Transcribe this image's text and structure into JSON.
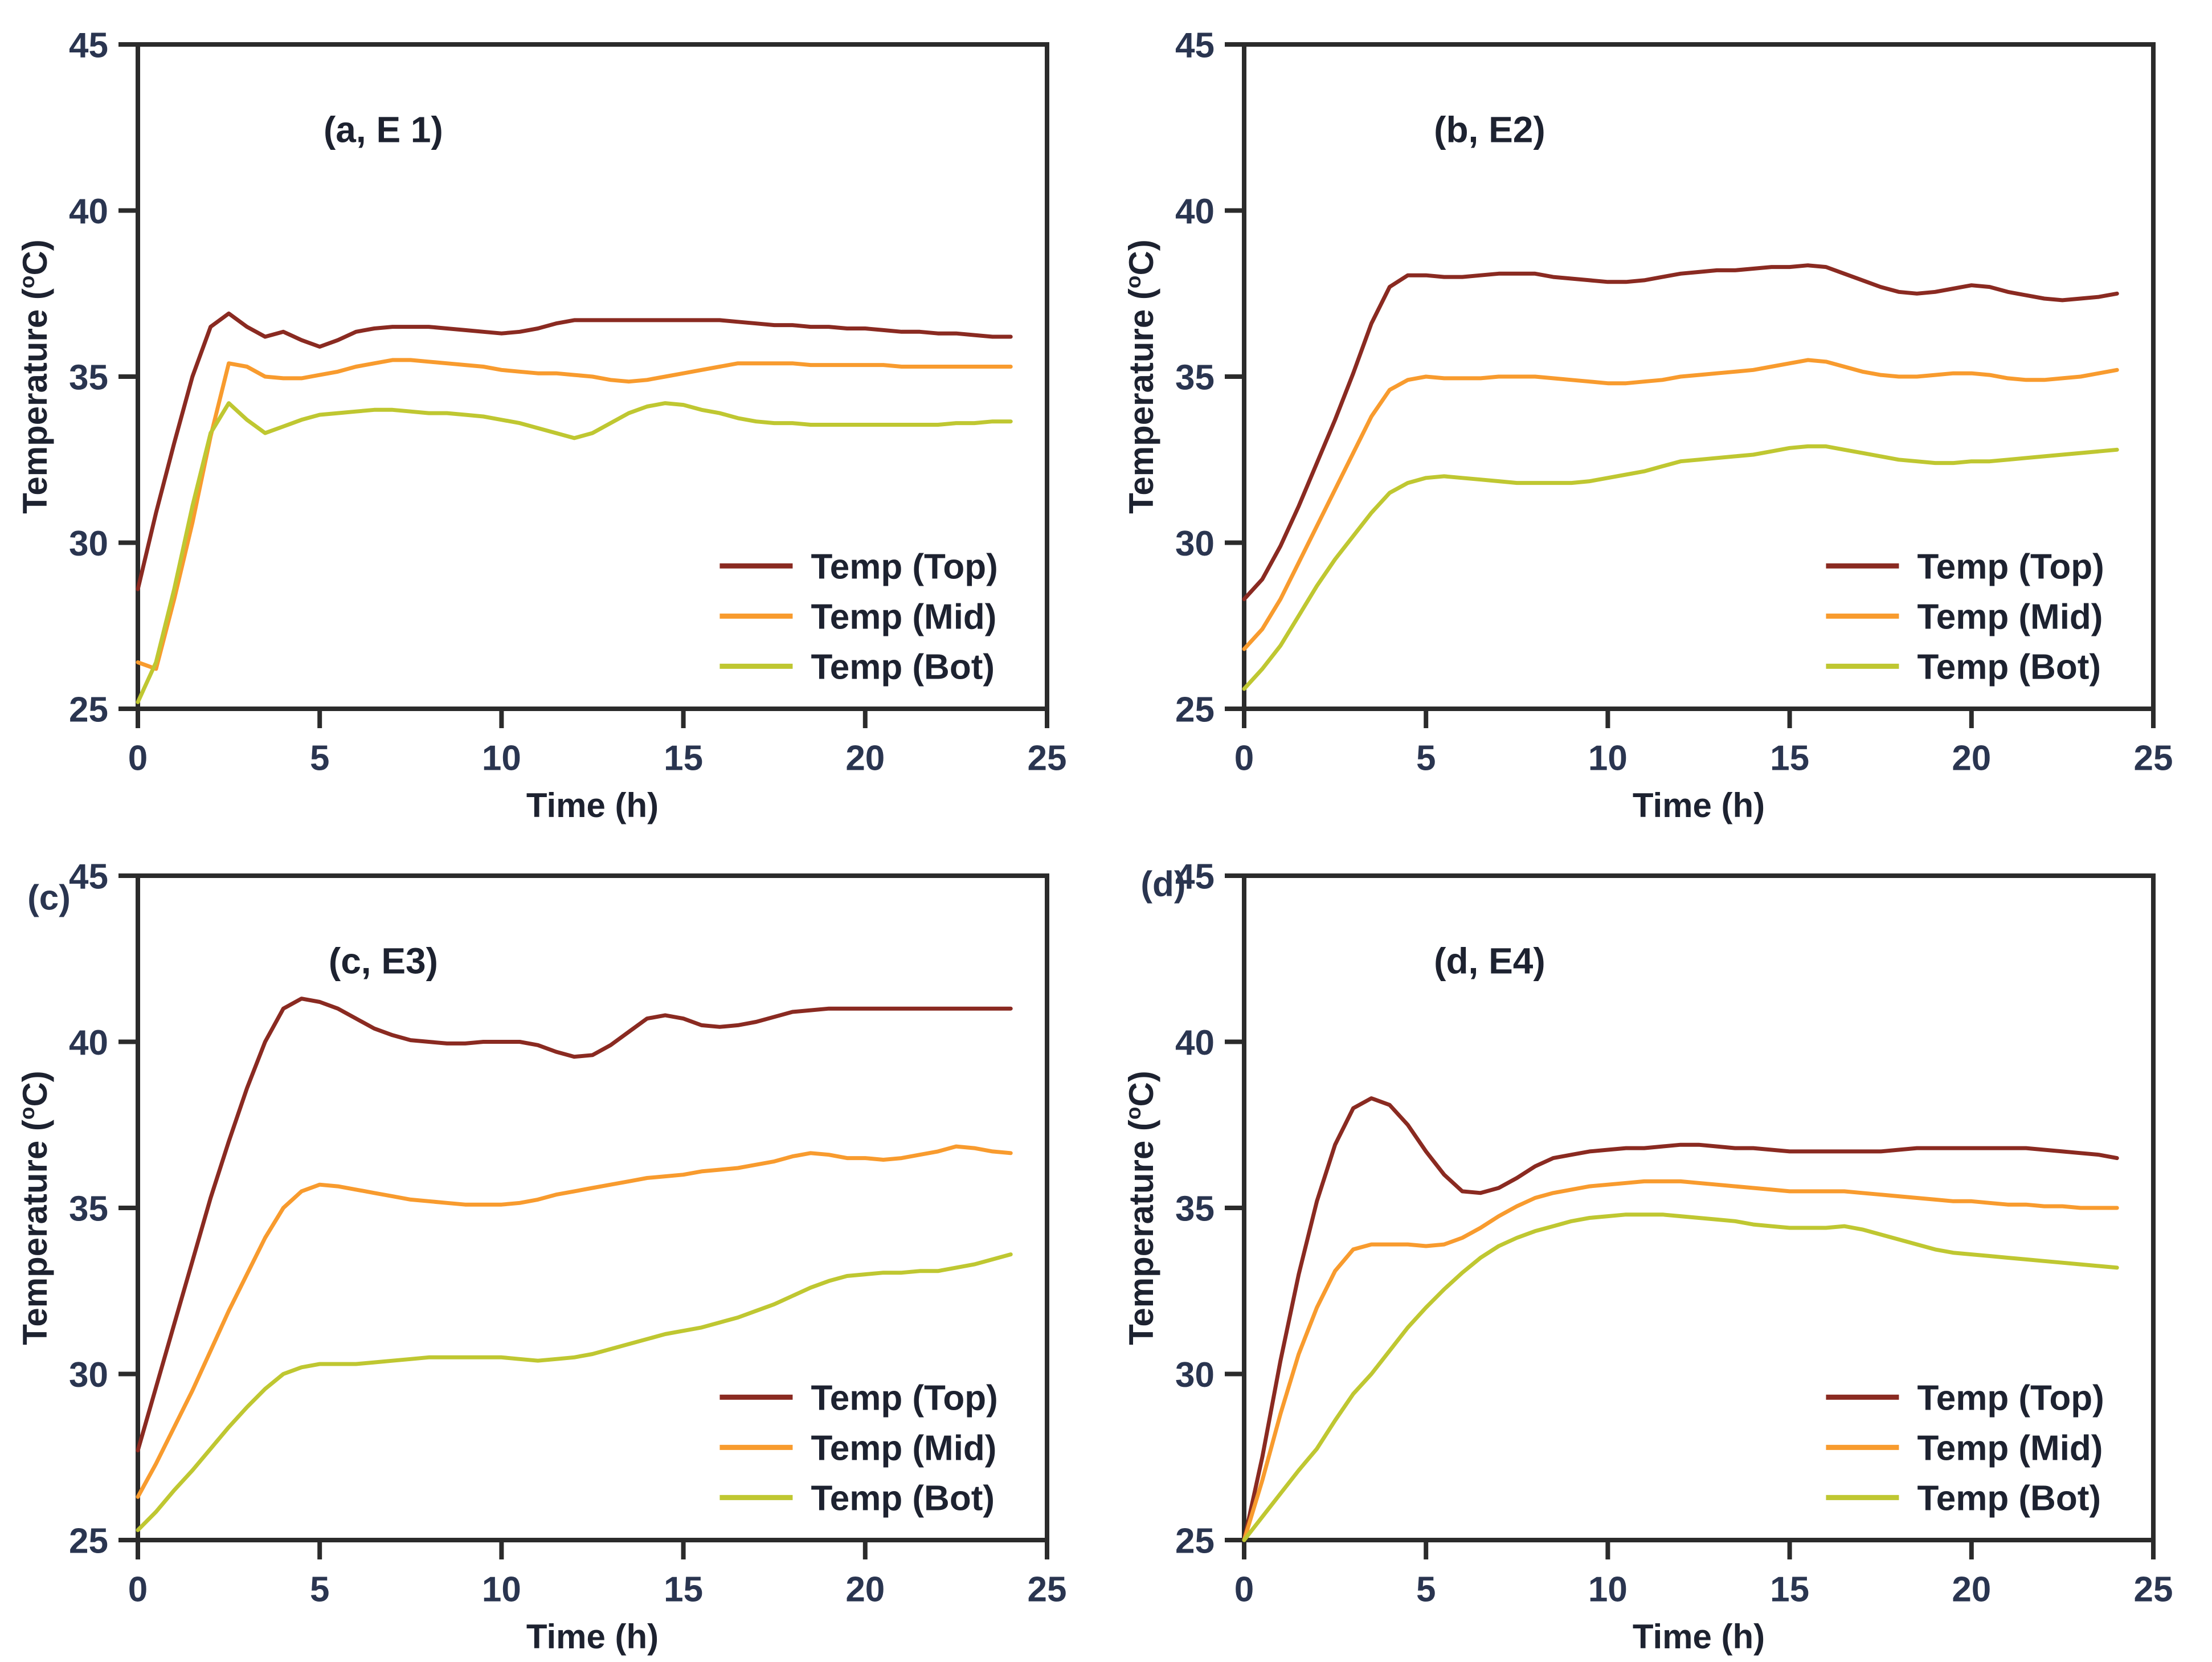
{
  "page": {
    "background": "#ffffff"
  },
  "colors": {
    "axis": "#2b2b2b",
    "tick_text": "#2a3550",
    "label_text": "#1d2230",
    "series_top": "#8a2a21",
    "series_mid": "#f89b2e",
    "series_bot": "#bfc731"
  },
  "legend": {
    "labels": [
      "Temp (Top)",
      "Temp (Mid)",
      "Temp (Bot)"
    ]
  },
  "chart_data": [
    {
      "id": "a",
      "type": "line",
      "title": "(a, E 1)",
      "corner_label": "",
      "xlabel": "Time (h)",
      "ylabel": {
        "pre": "Temperature (",
        "sup": "o",
        "post": "C)"
      },
      "xlim": [
        0,
        25
      ],
      "ylim": [
        25,
        45
      ],
      "xticks": [
        0,
        5,
        10,
        15,
        20,
        25
      ],
      "yticks": [
        25,
        30,
        35,
        40,
        45
      ],
      "grid": false,
      "legend_position": "inside-bottom-right",
      "x": [
        0,
        0.5,
        1,
        1.5,
        2,
        2.5,
        3,
        3.5,
        4,
        4.5,
        5,
        5.5,
        6,
        6.5,
        7,
        7.5,
        8,
        8.5,
        9,
        9.5,
        10,
        10.5,
        11,
        11.5,
        12,
        12.5,
        13,
        13.5,
        14,
        14.5,
        15,
        15.5,
        16,
        16.5,
        17,
        17.5,
        18,
        18.5,
        19,
        19.5,
        20,
        20.5,
        21,
        21.5,
        22,
        22.5,
        23,
        23.5,
        24
      ],
      "series": [
        {
          "name": "Temp (Top)",
          "color_key": "series_top",
          "y": [
            28.6,
            30.9,
            33.0,
            35.0,
            36.5,
            36.9,
            36.5,
            36.2,
            36.35,
            36.1,
            35.9,
            36.1,
            36.35,
            36.45,
            36.5,
            36.5,
            36.5,
            36.45,
            36.4,
            36.35,
            36.3,
            36.35,
            36.45,
            36.6,
            36.7,
            36.7,
            36.7,
            36.7,
            36.7,
            36.7,
            36.7,
            36.7,
            36.7,
            36.65,
            36.6,
            36.55,
            36.55,
            36.5,
            36.5,
            36.45,
            36.45,
            36.4,
            36.35,
            36.35,
            36.3,
            36.3,
            36.25,
            36.2,
            36.2
          ]
        },
        {
          "name": "Temp (Mid)",
          "color_key": "series_mid",
          "y": [
            26.4,
            26.2,
            28.3,
            30.6,
            33.2,
            35.4,
            35.3,
            35.0,
            34.95,
            34.95,
            35.05,
            35.15,
            35.3,
            35.4,
            35.5,
            35.5,
            35.45,
            35.4,
            35.35,
            35.3,
            35.2,
            35.15,
            35.1,
            35.1,
            35.05,
            35.0,
            34.9,
            34.85,
            34.9,
            35.0,
            35.1,
            35.2,
            35.3,
            35.4,
            35.4,
            35.4,
            35.4,
            35.35,
            35.35,
            35.35,
            35.35,
            35.35,
            35.3,
            35.3,
            35.3,
            35.3,
            35.3,
            35.3,
            35.3
          ]
        },
        {
          "name": "Temp (Bot)",
          "color_key": "series_bot",
          "y": [
            25.2,
            26.4,
            28.6,
            31.1,
            33.3,
            34.2,
            33.7,
            33.3,
            33.5,
            33.7,
            33.85,
            33.9,
            33.95,
            34.0,
            34.0,
            33.95,
            33.9,
            33.9,
            33.85,
            33.8,
            33.7,
            33.6,
            33.45,
            33.3,
            33.15,
            33.3,
            33.6,
            33.9,
            34.1,
            34.2,
            34.15,
            34.0,
            33.9,
            33.75,
            33.65,
            33.6,
            33.6,
            33.55,
            33.55,
            33.55,
            33.55,
            33.55,
            33.55,
            33.55,
            33.55,
            33.6,
            33.6,
            33.65,
            33.65
          ]
        }
      ]
    },
    {
      "id": "b",
      "type": "line",
      "title": "(b, E2)",
      "corner_label": "",
      "xlabel": "Time (h)",
      "ylabel": {
        "pre": "Temperature (",
        "sup": "o",
        "post": "C)"
      },
      "xlim": [
        0,
        25
      ],
      "ylim": [
        25,
        45
      ],
      "xticks": [
        0,
        5,
        10,
        15,
        20,
        25
      ],
      "yticks": [
        25,
        30,
        35,
        40,
        45
      ],
      "grid": false,
      "legend_position": "inside-bottom-right",
      "x": [
        0,
        0.5,
        1,
        1.5,
        2,
        2.5,
        3,
        3.5,
        4,
        4.5,
        5,
        5.5,
        6,
        6.5,
        7,
        7.5,
        8,
        8.5,
        9,
        9.5,
        10,
        10.5,
        11,
        11.5,
        12,
        12.5,
        13,
        13.5,
        14,
        14.5,
        15,
        15.5,
        16,
        16.5,
        17,
        17.5,
        18,
        18.5,
        19,
        19.5,
        20,
        20.5,
        21,
        21.5,
        22,
        22.5,
        23,
        23.5,
        24
      ],
      "series": [
        {
          "name": "Temp (Top)",
          "color_key": "series_top",
          "y": [
            28.3,
            28.9,
            29.9,
            31.1,
            32.4,
            33.7,
            35.1,
            36.6,
            37.7,
            38.05,
            38.05,
            38.0,
            38.0,
            38.05,
            38.1,
            38.1,
            38.1,
            38.0,
            37.95,
            37.9,
            37.85,
            37.85,
            37.9,
            38.0,
            38.1,
            38.15,
            38.2,
            38.2,
            38.25,
            38.3,
            38.3,
            38.35,
            38.3,
            38.1,
            37.9,
            37.7,
            37.55,
            37.5,
            37.55,
            37.65,
            37.75,
            37.7,
            37.55,
            37.45,
            37.35,
            37.3,
            37.35,
            37.4,
            37.5
          ]
        },
        {
          "name": "Temp (Mid)",
          "color_key": "series_mid",
          "y": [
            26.8,
            27.4,
            28.3,
            29.4,
            30.5,
            31.6,
            32.7,
            33.8,
            34.6,
            34.9,
            35.0,
            34.95,
            34.95,
            34.95,
            35.0,
            35.0,
            35.0,
            34.95,
            34.9,
            34.85,
            34.8,
            34.8,
            34.85,
            34.9,
            35.0,
            35.05,
            35.1,
            35.15,
            35.2,
            35.3,
            35.4,
            35.5,
            35.45,
            35.3,
            35.15,
            35.05,
            35.0,
            35.0,
            35.05,
            35.1,
            35.1,
            35.05,
            34.95,
            34.9,
            34.9,
            34.95,
            35.0,
            35.1,
            35.2
          ]
        },
        {
          "name": "Temp (Bot)",
          "color_key": "series_bot",
          "y": [
            25.6,
            26.2,
            26.9,
            27.8,
            28.7,
            29.5,
            30.2,
            30.9,
            31.5,
            31.8,
            31.95,
            32.0,
            31.95,
            31.9,
            31.85,
            31.8,
            31.8,
            31.8,
            31.8,
            31.85,
            31.95,
            32.05,
            32.15,
            32.3,
            32.45,
            32.5,
            32.55,
            32.6,
            32.65,
            32.75,
            32.85,
            32.9,
            32.9,
            32.8,
            32.7,
            32.6,
            32.5,
            32.45,
            32.4,
            32.4,
            32.45,
            32.45,
            32.5,
            32.55,
            32.6,
            32.65,
            32.7,
            32.75,
            32.8
          ]
        }
      ]
    },
    {
      "id": "c",
      "type": "line",
      "title": "(c, E3)",
      "corner_label": "(c)",
      "xlabel": "Time (h)",
      "ylabel": {
        "pre": "Temperature (",
        "sup": "o",
        "post": "C)"
      },
      "xlim": [
        0,
        25
      ],
      "ylim": [
        25,
        45
      ],
      "xticks": [
        0,
        5,
        10,
        15,
        20,
        25
      ],
      "yticks": [
        25,
        30,
        35,
        40,
        45
      ],
      "grid": false,
      "legend_position": "inside-bottom-right",
      "x": [
        0,
        0.5,
        1,
        1.5,
        2,
        2.5,
        3,
        3.5,
        4,
        4.5,
        5,
        5.5,
        6,
        6.5,
        7,
        7.5,
        8,
        8.5,
        9,
        9.5,
        10,
        10.5,
        11,
        11.5,
        12,
        12.5,
        13,
        13.5,
        14,
        14.5,
        15,
        15.5,
        16,
        16.5,
        17,
        17.5,
        18,
        18.5,
        19,
        19.5,
        20,
        20.5,
        21,
        21.5,
        22,
        22.5,
        23,
        23.5,
        24
      ],
      "series": [
        {
          "name": "Temp (Top)",
          "color_key": "series_top",
          "y": [
            27.7,
            29.6,
            31.5,
            33.4,
            35.3,
            37.0,
            38.6,
            40.0,
            41.0,
            41.3,
            41.2,
            41.0,
            40.7,
            40.4,
            40.2,
            40.05,
            40.0,
            39.95,
            39.95,
            40.0,
            40.0,
            40.0,
            39.9,
            39.7,
            39.55,
            39.6,
            39.9,
            40.3,
            40.7,
            40.8,
            40.7,
            40.5,
            40.45,
            40.5,
            40.6,
            40.75,
            40.9,
            40.95,
            41.0,
            41.0,
            41.0,
            41.0,
            41.0,
            41.0,
            41.0,
            41.0,
            41.0,
            41.0,
            41.0
          ]
        },
        {
          "name": "Temp (Mid)",
          "color_key": "series_mid",
          "y": [
            26.3,
            27.3,
            28.4,
            29.5,
            30.7,
            31.9,
            33.0,
            34.1,
            35.0,
            35.5,
            35.7,
            35.65,
            35.55,
            35.45,
            35.35,
            35.25,
            35.2,
            35.15,
            35.1,
            35.1,
            35.1,
            35.15,
            35.25,
            35.4,
            35.5,
            35.6,
            35.7,
            35.8,
            35.9,
            35.95,
            36.0,
            36.1,
            36.15,
            36.2,
            36.3,
            36.4,
            36.55,
            36.65,
            36.6,
            36.5,
            36.5,
            36.45,
            36.5,
            36.6,
            36.7,
            36.85,
            36.8,
            36.7,
            36.65
          ]
        },
        {
          "name": "Temp (Bot)",
          "color_key": "series_bot",
          "y": [
            25.3,
            25.85,
            26.5,
            27.1,
            27.75,
            28.4,
            29.0,
            29.55,
            30.0,
            30.2,
            30.3,
            30.3,
            30.3,
            30.35,
            30.4,
            30.45,
            30.5,
            30.5,
            30.5,
            30.5,
            30.5,
            30.45,
            30.4,
            30.45,
            30.5,
            30.6,
            30.75,
            30.9,
            31.05,
            31.2,
            31.3,
            31.4,
            31.55,
            31.7,
            31.9,
            32.1,
            32.35,
            32.6,
            32.8,
            32.95,
            33.0,
            33.05,
            33.05,
            33.1,
            33.1,
            33.2,
            33.3,
            33.45,
            33.6
          ]
        }
      ]
    },
    {
      "id": "d",
      "type": "line",
      "title": "(d, E4)",
      "corner_label": "(d)",
      "xlabel": "Time (h)",
      "ylabel": {
        "pre": "Temperature (",
        "sup": "o",
        "post": "C)"
      },
      "xlim": [
        0,
        25
      ],
      "ylim": [
        25,
        45
      ],
      "xticks": [
        0,
        5,
        10,
        15,
        20,
        25
      ],
      "yticks": [
        25,
        30,
        35,
        40,
        45
      ],
      "grid": false,
      "legend_position": "inside-bottom-right",
      "x": [
        0,
        0.5,
        1,
        1.5,
        2,
        2.5,
        3,
        3.5,
        4,
        4.5,
        5,
        5.5,
        6,
        6.5,
        7,
        7.5,
        8,
        8.5,
        9,
        9.5,
        10,
        10.5,
        11,
        11.5,
        12,
        12.5,
        13,
        13.5,
        14,
        14.5,
        15,
        15.5,
        16,
        16.5,
        17,
        17.5,
        18,
        18.5,
        19,
        19.5,
        20,
        20.5,
        21,
        21.5,
        22,
        22.5,
        23,
        23.5,
        24
      ],
      "series": [
        {
          "name": "Temp (Top)",
          "color_key": "series_top",
          "y": [
            25.0,
            27.5,
            30.4,
            33.0,
            35.2,
            36.9,
            38.0,
            38.3,
            38.1,
            37.5,
            36.7,
            36.0,
            35.5,
            35.45,
            35.6,
            35.9,
            36.25,
            36.5,
            36.6,
            36.7,
            36.75,
            36.8,
            36.8,
            36.85,
            36.9,
            36.9,
            36.85,
            36.8,
            36.8,
            36.75,
            36.7,
            36.7,
            36.7,
            36.7,
            36.7,
            36.7,
            36.75,
            36.8,
            36.8,
            36.8,
            36.8,
            36.8,
            36.8,
            36.8,
            36.75,
            36.7,
            36.65,
            36.6,
            36.5
          ]
        },
        {
          "name": "Temp (Mid)",
          "color_key": "series_mid",
          "y": [
            25.0,
            26.8,
            28.8,
            30.6,
            32.0,
            33.1,
            33.75,
            33.9,
            33.9,
            33.9,
            33.85,
            33.9,
            34.1,
            34.4,
            34.75,
            35.05,
            35.3,
            35.45,
            35.55,
            35.65,
            35.7,
            35.75,
            35.8,
            35.8,
            35.8,
            35.75,
            35.7,
            35.65,
            35.6,
            35.55,
            35.5,
            35.5,
            35.5,
            35.5,
            35.45,
            35.4,
            35.35,
            35.3,
            35.25,
            35.2,
            35.2,
            35.15,
            35.1,
            35.1,
            35.05,
            35.05,
            35.0,
            35.0,
            35.0
          ]
        },
        {
          "name": "Temp (Bot)",
          "color_key": "series_bot",
          "y": [
            25.0,
            25.7,
            26.4,
            27.1,
            27.75,
            28.6,
            29.4,
            30.0,
            30.7,
            31.4,
            32.0,
            32.55,
            33.05,
            33.5,
            33.85,
            34.1,
            34.3,
            34.45,
            34.6,
            34.7,
            34.75,
            34.8,
            34.8,
            34.8,
            34.75,
            34.7,
            34.65,
            34.6,
            34.5,
            34.45,
            34.4,
            34.4,
            34.4,
            34.45,
            34.35,
            34.2,
            34.05,
            33.9,
            33.75,
            33.65,
            33.6,
            33.55,
            33.5,
            33.45,
            33.4,
            33.35,
            33.3,
            33.25,
            33.2
          ]
        }
      ]
    }
  ]
}
